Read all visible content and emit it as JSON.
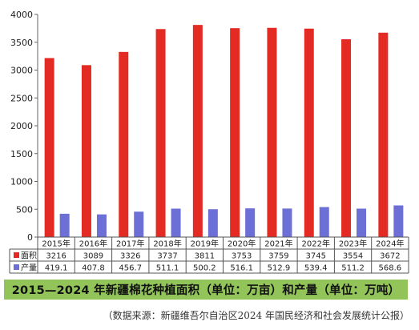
{
  "chart_data": {
    "type": "bar",
    "categories": [
      "2015年",
      "2016年",
      "2017年",
      "2018年",
      "2019年",
      "2020年",
      "2021年",
      "2022年",
      "2023年",
      "2024年"
    ],
    "series": [
      {
        "name": "面积",
        "values": [
          3216,
          3089,
          3326,
          3737,
          3811,
          3753,
          3759,
          3745,
          3554,
          3672
        ],
        "color": "#e32b23"
      },
      {
        "name": "产量",
        "values": [
          419.1,
          407.8,
          456.7,
          511.1,
          500.2,
          516.1,
          512.9,
          539.4,
          511.2,
          568.6
        ],
        "color": "#6b6fd6"
      }
    ],
    "value_labels": [
      [
        "3216",
        "3089",
        "3326",
        "3737",
        "3811",
        "3753",
        "3759",
        "3745",
        "3554",
        "3672"
      ],
      [
        "419.1",
        "407.8",
        "456.7",
        "511.1",
        "500.2",
        "516.1",
        "512.9",
        "539.4",
        "511.2",
        "568.6"
      ]
    ],
    "yticks": [
      "0",
      "500",
      "1000",
      "1500",
      "2000",
      "2500",
      "3000",
      "3500",
      "4000"
    ],
    "ylim": [
      0,
      4000
    ],
    "grid": false,
    "legend": "data-table",
    "title": "2015—2024 年新疆棉花种植面积（单位：万亩）和产量（单位：万吨）",
    "source": "（数据来源：新疆维吾尔自治区2024 年国民经济和社会发展统计公报）"
  }
}
